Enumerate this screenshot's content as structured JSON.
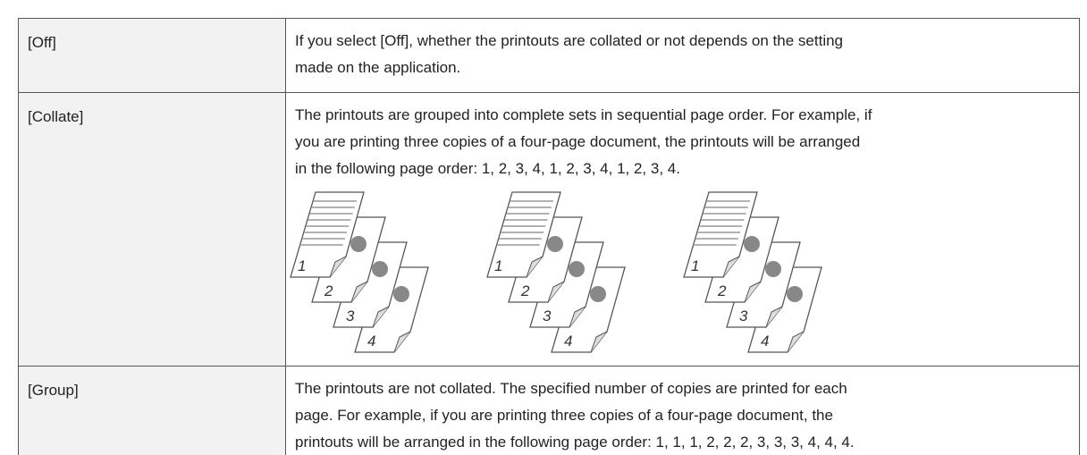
{
  "table": {
    "rows": [
      {
        "setting": "[Off]",
        "description": [
          "If you select [Off], whether the printouts are collated or not depends on the setting",
          "made on the application."
        ]
      },
      {
        "setting": "[Collate]",
        "description": [
          "The printouts are grouped into complete sets in sequential page order. For example, if",
          "you are printing three copies of a four-page document, the printouts will be arranged",
          "in the following page order: 1, 2, 3, 4, 1, 2, 3, 4, 1, 2, 3, 4."
        ],
        "illustration_page_numbers": [
          "1",
          "2",
          "3",
          "4"
        ]
      },
      {
        "setting": "[Group]",
        "description": [
          "The printouts are not collated. The specified number of copies are printed for each",
          "page. For example, if you are printing three copies of a four-page document, the",
          "printouts will be arranged in the following page order: 1, 1, 1, 2, 2, 2, 3, 3, 3, 4, 4, 4."
        ]
      }
    ]
  }
}
